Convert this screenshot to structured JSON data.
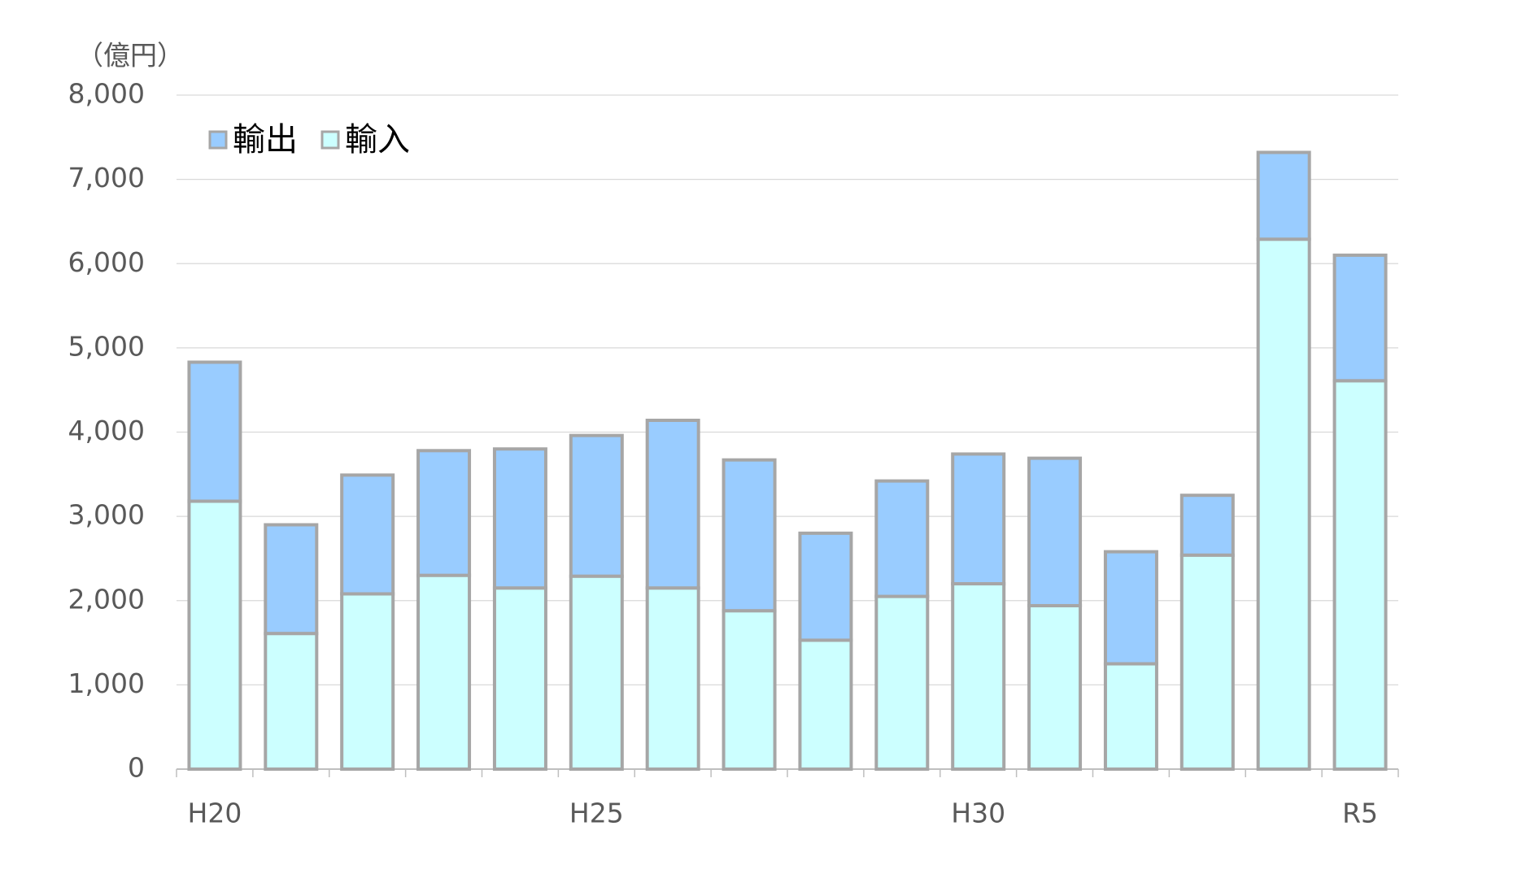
{
  "chart_data": {
    "type": "stacked_bar",
    "unit_label": "（億円）",
    "categories": [
      "H20",
      null,
      null,
      null,
      null,
      "H25",
      null,
      null,
      null,
      null,
      "H30",
      null,
      null,
      null,
      null,
      "R5"
    ],
    "series": [
      {
        "name": "輸出",
        "color": "#99ccff",
        "values": [
          1650,
          1290,
          1410,
          1480,
          1650,
          1670,
          1990,
          1790,
          1270,
          1370,
          1540,
          1750,
          1330,
          710,
          1030,
          1490
        ]
      },
      {
        "name": "輸入",
        "color": "#ccffff",
        "values": [
          3180,
          1610,
          2080,
          2300,
          2150,
          2290,
          2150,
          1880,
          1530,
          2050,
          2200,
          1940,
          1250,
          2540,
          6290,
          4610
        ]
      }
    ],
    "ylim": [
      0,
      8000
    ],
    "yticks": [
      0,
      {
        "value": 1000,
        "label": "1,000"
      },
      {
        "value": 2000,
        "label": "2,000"
      },
      {
        "value": 3000,
        "label": "3,000"
      },
      {
        "value": 4000,
        "label": "4,000"
      },
      {
        "value": 5000,
        "label": "5,000"
      },
      {
        "value": 6000,
        "label": "6,000"
      },
      {
        "value": 7000,
        "label": "7,000"
      },
      {
        "value": 8000,
        "label": "8,000"
      }
    ],
    "grid": true,
    "legend": "top-left"
  }
}
